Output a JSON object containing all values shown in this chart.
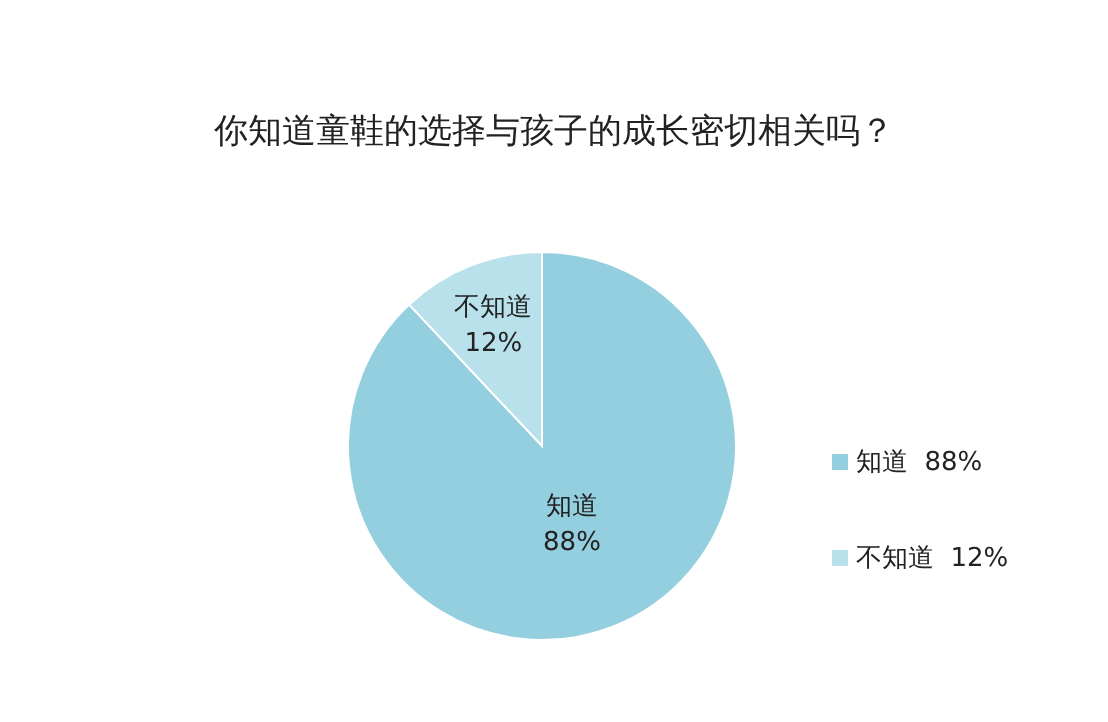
{
  "chart_data": {
    "type": "pie",
    "title": "你知道童鞋的选择与孩子的成长密切相关吗？",
    "categories": [
      "知道",
      "不知道"
    ],
    "values": [
      88,
      12
    ],
    "value_labels": [
      "88%",
      "12%"
    ],
    "colors": [
      "#94cfdf",
      "#b8e1eb"
    ],
    "data_labels": true,
    "legend": "right"
  }
}
